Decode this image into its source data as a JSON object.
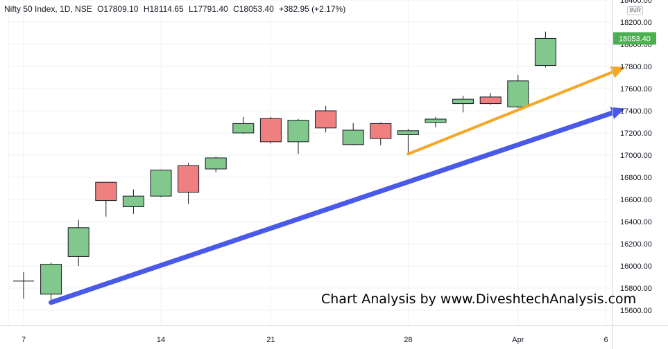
{
  "legend": {
    "symbol": "Nifty 50 Index, 1D, NSE",
    "open": "O17809.10",
    "high": "H18114.65",
    "low": "L17791.40",
    "close": "C18053.40",
    "change": "+382.95 (+2.17%)"
  },
  "currency": "INR",
  "watermark": "Chart Analysis by www.DiveshtechAnalysis.com",
  "colors": {
    "up": "#82c88c",
    "down": "#f08080",
    "orange_arrow": "#f5a623",
    "blue_arrow": "#4a5ae8",
    "price_tag": "#4caf50"
  },
  "chart_data": {
    "type": "candlestick",
    "x_ticks": [
      "7",
      "14",
      "21",
      "28",
      "Apr",
      "6"
    ],
    "y_ticks": [
      "15600.00",
      "15800.00",
      "16000.00",
      "16200.00",
      "16400.00",
      "16600.00",
      "16800.00",
      "17000.00",
      "17200.00",
      "17400.00",
      "17600.00",
      "17800.00",
      "18000.00",
      "18200.00",
      "18400.00"
    ],
    "ylim": [
      15480,
      18480
    ],
    "last_price": "18053.40",
    "candles": [
      {
        "o": 15863,
        "h": 15945,
        "l": 15705,
        "c": 15863
      },
      {
        "o": 15745,
        "h": 16030,
        "l": 15675,
        "c": 16015
      },
      {
        "o": 16085,
        "h": 16415,
        "l": 16000,
        "c": 16345
      },
      {
        "o": 16755,
        "h": 16755,
        "l": 16445,
        "c": 16590
      },
      {
        "o": 16535,
        "h": 16690,
        "l": 16470,
        "c": 16630
      },
      {
        "o": 16630,
        "h": 16870,
        "l": 16620,
        "c": 16865
      },
      {
        "o": 16905,
        "h": 16930,
        "l": 16560,
        "c": 16665
      },
      {
        "o": 16875,
        "h": 16985,
        "l": 16845,
        "c": 16975
      },
      {
        "o": 17200,
        "h": 17345,
        "l": 17190,
        "c": 17285
      },
      {
        "o": 17330,
        "h": 17345,
        "l": 17105,
        "c": 17120
      },
      {
        "o": 17120,
        "h": 17325,
        "l": 17010,
        "c": 17315
      },
      {
        "o": 17400,
        "h": 17445,
        "l": 17205,
        "c": 17245
      },
      {
        "o": 17095,
        "h": 17290,
        "l": 17090,
        "c": 17225
      },
      {
        "o": 17285,
        "h": 17295,
        "l": 17090,
        "c": 17150
      },
      {
        "o": 17185,
        "h": 17235,
        "l": 17010,
        "c": 17220
      },
      {
        "o": 17295,
        "h": 17345,
        "l": 17250,
        "c": 17325
      },
      {
        "o": 17465,
        "h": 17535,
        "l": 17385,
        "c": 17505
      },
      {
        "o": 17525,
        "h": 17560,
        "l": 17455,
        "c": 17465
      },
      {
        "o": 17435,
        "h": 17725,
        "l": 17425,
        "c": 17670
      },
      {
        "o": 17809.1,
        "h": 18114.65,
        "l": 17791.4,
        "c": 18053.4
      }
    ],
    "annotations": [
      {
        "name": "blue-trend-arrow",
        "from": [
          1,
          15670
        ],
        "to": [
          21.9,
          17420
        ]
      },
      {
        "name": "orange-trend-arrow",
        "from": [
          14,
          17010
        ],
        "to": [
          21.9,
          17795
        ]
      }
    ]
  }
}
